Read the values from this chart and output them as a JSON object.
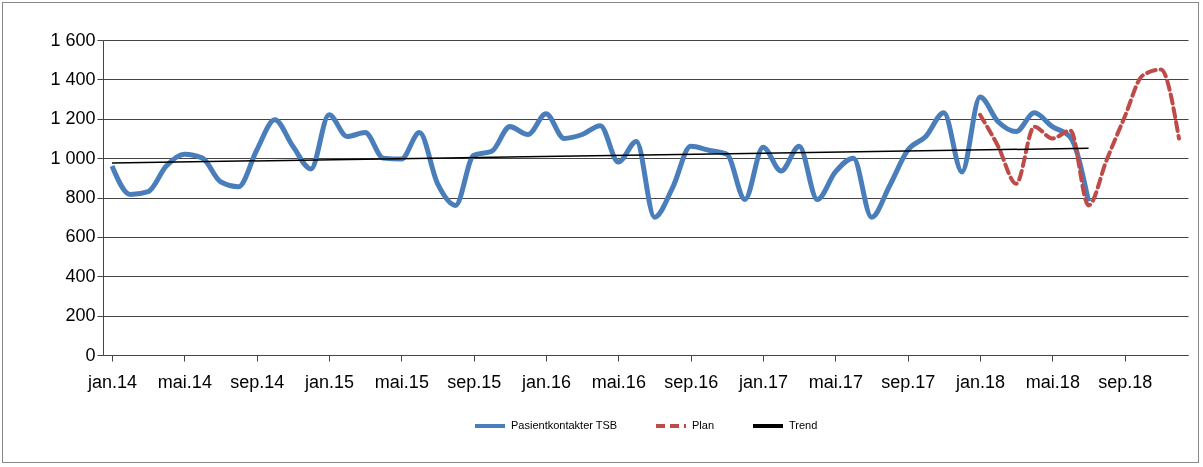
{
  "chart_data": {
    "type": "line",
    "categories": [
      "jan.14",
      null,
      null,
      null,
      "mai.14",
      null,
      null,
      null,
      "sep.14",
      null,
      null,
      null,
      "jan.15",
      null,
      null,
      null,
      "mai.15",
      null,
      null,
      null,
      "sep.15",
      null,
      null,
      null,
      "jan.16",
      null,
      null,
      null,
      "mai.16",
      null,
      null,
      null,
      "sep.16",
      null,
      null,
      null,
      "jan.17",
      null,
      null,
      null,
      "mai.17",
      null,
      null,
      null,
      "sep.17",
      null,
      null,
      null,
      "jan.18",
      null,
      null,
      null,
      "mai.18",
      null,
      null,
      null,
      "sep.18",
      null,
      null,
      null
    ],
    "series": [
      {
        "name": "Pasientkontakter TSB",
        "color": "#4a7ebb",
        "line_style": "solid",
        "values": [
          960,
          815,
          830,
          960,
          1020,
          1000,
          880,
          855,
          1040,
          1195,
          1060,
          945,
          1220,
          1110,
          1130,
          1000,
          995,
          1130,
          870,
          760,
          1015,
          1035,
          1160,
          1120,
          1225,
          1100,
          1120,
          1165,
          980,
          1085,
          700,
          850,
          1060,
          1040,
          1020,
          790,
          1055,
          935,
          1060,
          790,
          930,
          1000,
          700,
          860,
          1040,
          1110,
          1230,
          930,
          1310,
          1185,
          1135,
          1230,
          1160,
          1105,
          780,
          null,
          null,
          null,
          null,
          null
        ]
      },
      {
        "name": "Plan",
        "color": "#be4b48",
        "line_style": "dashed",
        "values": [
          null,
          null,
          null,
          null,
          null,
          null,
          null,
          null,
          null,
          null,
          null,
          null,
          null,
          null,
          null,
          null,
          null,
          null,
          null,
          null,
          null,
          null,
          null,
          null,
          null,
          null,
          null,
          null,
          null,
          null,
          null,
          null,
          null,
          null,
          null,
          null,
          null,
          null,
          null,
          null,
          null,
          null,
          null,
          null,
          null,
          null,
          null,
          null,
          1220,
          1060,
          870,
          1160,
          1100,
          1140,
          760,
          990,
          1210,
          1420,
          1450,
          1100
        ]
      },
      {
        "name": "Trend",
        "color": "#000000",
        "line_style": "solid",
        "values": [
          975,
          null,
          null,
          null,
          null,
          null,
          null,
          null,
          null,
          null,
          null,
          null,
          null,
          null,
          null,
          null,
          null,
          null,
          null,
          null,
          null,
          null,
          null,
          null,
          null,
          null,
          null,
          null,
          null,
          null,
          null,
          null,
          null,
          null,
          null,
          null,
          null,
          null,
          null,
          null,
          null,
          null,
          null,
          null,
          null,
          null,
          null,
          null,
          null,
          null,
          null,
          null,
          null,
          null,
          1050,
          null,
          null,
          null,
          null,
          null
        ]
      }
    ],
    "ylim": [
      0,
      1600
    ],
    "yticks": [
      0,
      200,
      400,
      600,
      800,
      {
        "value": 1000,
        "label": "1 000"
      },
      {
        "value": 1200,
        "label": "1 200"
      },
      {
        "value": 1400,
        "label": "1 400"
      },
      {
        "value": 1600,
        "label": "1 600"
      }
    ],
    "grid": "y",
    "legend": "bottom",
    "marker": "none"
  }
}
